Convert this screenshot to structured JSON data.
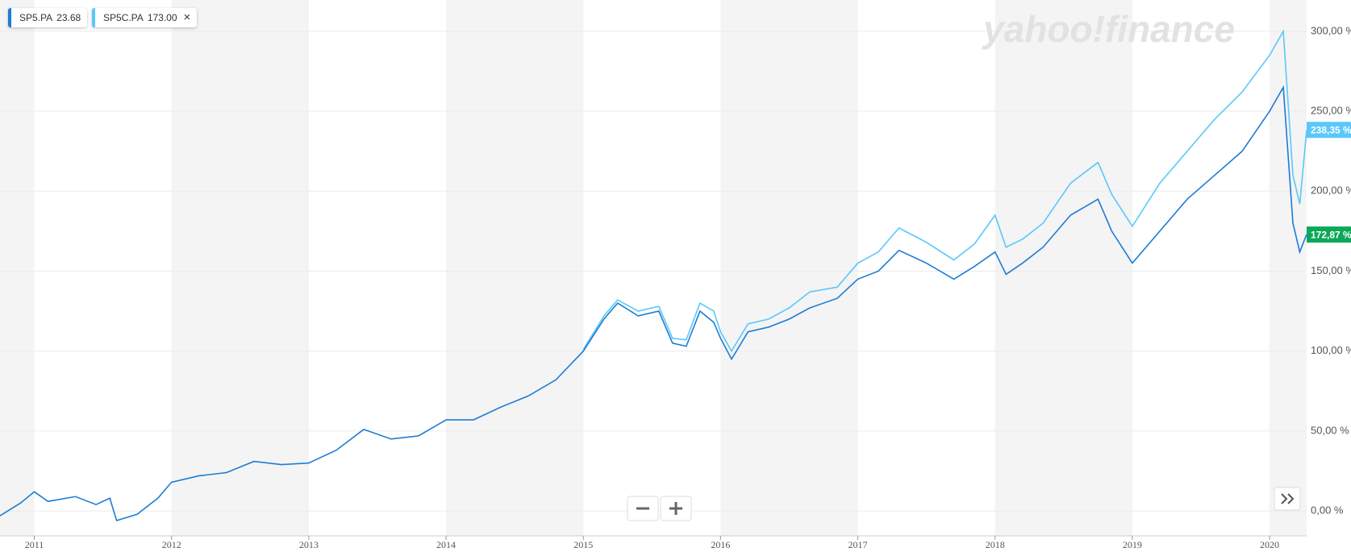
{
  "chart_data": {
    "type": "line",
    "watermark": "yahoo!finance",
    "xlim": [
      2010.75,
      2020.27
    ],
    "xticks": [
      2011,
      2012,
      2013,
      2014,
      2015,
      2016,
      2017,
      2018,
      2019,
      2020
    ],
    "ylim": [
      -8,
      310
    ],
    "yticks": [
      {
        "value": 0,
        "label": "0,00 %"
      },
      {
        "value": 50,
        "label": "50,00 %"
      },
      {
        "value": 100,
        "label": "100,00 %"
      },
      {
        "value": 150,
        "label": "150,00 %"
      },
      {
        "value": 200,
        "label": "200,00 %"
      },
      {
        "value": 250,
        "label": "250,00 %"
      },
      {
        "value": 300,
        "label": "300,00 %"
      }
    ],
    "grid": true,
    "legend": "top-left",
    "series": [
      {
        "name": "SP5.PA",
        "price": "23.68",
        "color": "#1c7cd5",
        "badge_color": "#0ca85a",
        "last_value": 172.87,
        "last_label": "172,87 %",
        "x": [
          2010.75,
          2010.9,
          2011.0,
          2011.1,
          2011.3,
          2011.45,
          2011.55,
          2011.6,
          2011.75,
          2011.9,
          2012.0,
          2012.2,
          2012.4,
          2012.6,
          2012.8,
          2013.0,
          2013.2,
          2013.4,
          2013.6,
          2013.8,
          2014.0,
          2014.2,
          2014.4,
          2014.6,
          2014.8,
          2015.0,
          2015.15,
          2015.25,
          2015.4,
          2015.55,
          2015.65,
          2015.75,
          2015.85,
          2015.95,
          2016.0,
          2016.08,
          2016.2,
          2016.35,
          2016.5,
          2016.65,
          2016.85,
          2017.0,
          2017.15,
          2017.3,
          2017.5,
          2017.7,
          2017.85,
          2018.0,
          2018.08,
          2018.2,
          2018.35,
          2018.55,
          2018.75,
          2018.85,
          2019.0,
          2019.2,
          2019.4,
          2019.6,
          2019.8,
          2020.0,
          2020.1,
          2020.17,
          2020.22,
          2020.27
        ],
        "values": [
          -3,
          5,
          12,
          6,
          9,
          4,
          8,
          -6,
          -2,
          8,
          18,
          22,
          24,
          31,
          29,
          30,
          38,
          51,
          45,
          47,
          57,
          57,
          65,
          72,
          82,
          100,
          120,
          130,
          122,
          125,
          105,
          103,
          125,
          118,
          108,
          95,
          112,
          115,
          120,
          127,
          133,
          145,
          150,
          163,
          155,
          145,
          153,
          162,
          148,
          155,
          165,
          185,
          195,
          175,
          155,
          175,
          195,
          210,
          225,
          250,
          265,
          180,
          162,
          173
        ]
      },
      {
        "name": "SP5C.PA",
        "price": "173.00",
        "color": "#5ac8fa",
        "badge_color": "#5ac8fa",
        "last_value": 238.35,
        "last_label": "238,35 %",
        "x": [
          2015.0,
          2015.15,
          2015.25,
          2015.4,
          2015.55,
          2015.65,
          2015.75,
          2015.85,
          2015.95,
          2016.0,
          2016.08,
          2016.2,
          2016.35,
          2016.5,
          2016.65,
          2016.85,
          2017.0,
          2017.15,
          2017.3,
          2017.5,
          2017.7,
          2017.85,
          2018.0,
          2018.08,
          2018.2,
          2018.35,
          2018.55,
          2018.75,
          2018.85,
          2019.0,
          2019.2,
          2019.4,
          2019.6,
          2019.8,
          2020.0,
          2020.1,
          2020.17,
          2020.22,
          2020.27
        ],
        "values": [
          101,
          122,
          132,
          125,
          128,
          108,
          107,
          130,
          125,
          112,
          100,
          117,
          120,
          127,
          137,
          140,
          155,
          162,
          177,
          168,
          157,
          167,
          185,
          165,
          170,
          180,
          205,
          218,
          198,
          178,
          205,
          225,
          245,
          262,
          285,
          300,
          210,
          192,
          238
        ]
      }
    ]
  }
}
